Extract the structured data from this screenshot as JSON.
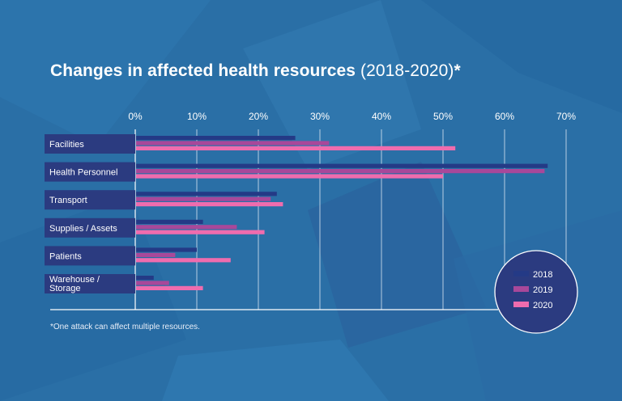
{
  "chart_data": {
    "type": "bar",
    "orientation": "horizontal",
    "title": "Changes in affected health resources",
    "title_years": "(2018-2020)",
    "title_suffix": "*",
    "footnote": "*One attack can affect multiple resources.",
    "categories": [
      "Facilities",
      "Health Personnel",
      "Transport",
      "Supplies / Assets",
      "Patients",
      "Warehouse / Storage"
    ],
    "category_lines": [
      [
        "Facilities"
      ],
      [
        "Health Personnel"
      ],
      [
        "Transport"
      ],
      [
        "Supplies / Assets"
      ],
      [
        "Patients"
      ],
      [
        "Warehouse /",
        "Storage"
      ]
    ],
    "x_ticks": [
      "0%",
      "10%",
      "20%",
      "30%",
      "40%",
      "50%",
      "60%",
      "70%"
    ],
    "xlim": [
      0,
      70
    ],
    "grid": true,
    "legend_position": "bottom-right",
    "series": [
      {
        "name": "2018",
        "color": "#243a86",
        "values": [
          26,
          67,
          23,
          11,
          10,
          3
        ]
      },
      {
        "name": "2019",
        "color": "#a8489a",
        "values": [
          31.5,
          66.5,
          22,
          16.5,
          6.5,
          5.5
        ]
      },
      {
        "name": "2020",
        "color": "#ef6cae",
        "values": [
          52,
          50,
          24,
          21,
          15.5,
          11
        ]
      }
    ]
  },
  "colors": {
    "background": "#2a6fa6",
    "label_box": "#2b3b80",
    "axis": "#ffffff"
  }
}
